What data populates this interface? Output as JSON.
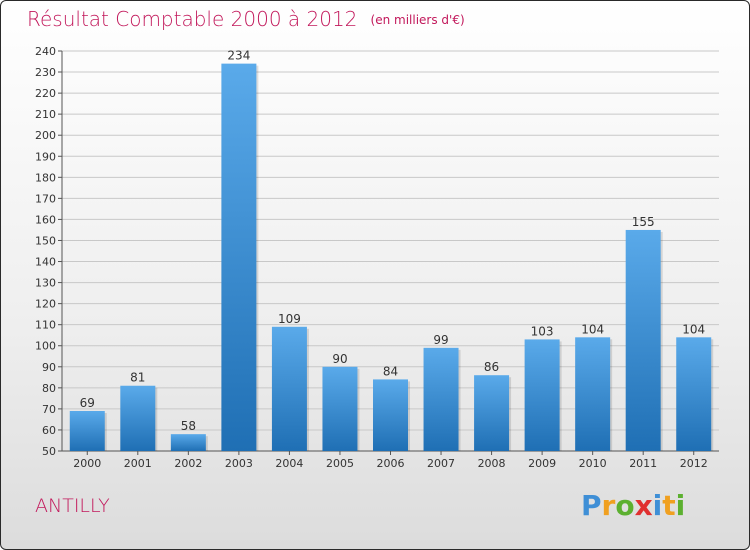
{
  "title": {
    "main": "Résultat Comptable 2000 à 2012",
    "unit": "(en milliers d'€)"
  },
  "commune": "ANTILLY",
  "logo": {
    "letters": [
      "P",
      "r",
      "o",
      "x",
      "i",
      "t",
      "i"
    ]
  },
  "colors": {
    "title": "#c2185b",
    "bar_light": "#5aaaea",
    "bar_dark": "#1f6fb4",
    "grid": "#c8c8c8"
  },
  "chart_data": {
    "type": "bar",
    "title": "Résultat Comptable 2000 à 2012",
    "xlabel": "",
    "ylabel": "",
    "categories": [
      "2000",
      "2001",
      "2002",
      "2003",
      "2004",
      "2005",
      "2006",
      "2007",
      "2008",
      "2009",
      "2010",
      "2011",
      "2012"
    ],
    "values": [
      69,
      81,
      58,
      234,
      109,
      90,
      84,
      99,
      86,
      103,
      104,
      155,
      104
    ],
    "ylim": [
      50,
      240
    ],
    "yticks": [
      50,
      60,
      70,
      80,
      90,
      100,
      110,
      120,
      130,
      140,
      150,
      160,
      170,
      180,
      190,
      200,
      210,
      220,
      230,
      240
    ],
    "grid": true,
    "data_labels": true
  }
}
